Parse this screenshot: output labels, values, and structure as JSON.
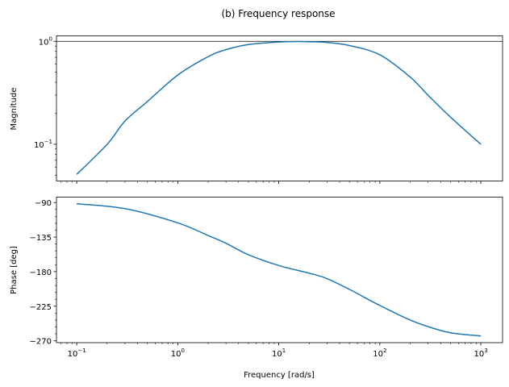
{
  "chart_data": [
    {
      "type": "line",
      "title": "(b) Frequency response",
      "xlabel": "",
      "ylabel": "Magnitude",
      "xscale": "log",
      "yscale": "log",
      "xlim": [
        0.063,
        1640
      ],
      "ylim": [
        0.044,
        1.13
      ],
      "grid": false,
      "reference_line_y": 1,
      "color": "#1f77b4",
      "yticks": [
        {
          "v": 1,
          "label": "10",
          "exp": "0"
        },
        {
          "v": 0.1,
          "label": "10",
          "exp": "−1"
        }
      ],
      "x": [
        0.1,
        0.2,
        0.3,
        0.5,
        1,
        2,
        3,
        5,
        10,
        15,
        20,
        30,
        50,
        100,
        200,
        300,
        500,
        1000
      ],
      "y": [
        0.051,
        0.1,
        0.168,
        0.26,
        0.47,
        0.71,
        0.83,
        0.93,
        0.985,
        0.995,
        0.99,
        0.976,
        0.91,
        0.74,
        0.45,
        0.3,
        0.184,
        0.1
      ]
    },
    {
      "type": "line",
      "xlabel": "Frequency [rad/s]",
      "ylabel": "Phase [deg]",
      "xscale": "log",
      "yscale": "linear",
      "xlim": [
        0.063,
        1640
      ],
      "ylim": [
        -272.4,
        -83
      ],
      "grid": false,
      "color": "#1f77b4",
      "yticks": [
        {
          "v": -90,
          "label": "−90"
        },
        {
          "v": -135,
          "label": "−135"
        },
        {
          "v": -180,
          "label": "−180"
        },
        {
          "v": -225,
          "label": "−225"
        },
        {
          "v": -270,
          "label": "−270"
        }
      ],
      "xticks": [
        {
          "v": 0.1,
          "label": "10",
          "exp": "−1"
        },
        {
          "v": 1,
          "label": "10",
          "exp": "0"
        },
        {
          "v": 10,
          "label": "10",
          "exp": "1"
        },
        {
          "v": 100,
          "label": "10",
          "exp": "2"
        },
        {
          "v": 1000,
          "label": "10",
          "exp": "3"
        }
      ],
      "x": [
        0.1,
        0.3,
        1,
        2,
        3,
        5,
        10,
        20,
        30,
        50,
        100,
        200,
        300,
        500,
        1000
      ],
      "y": [
        -91.7,
        -98,
        -116.5,
        -133,
        -143,
        -158,
        -172,
        -182,
        -189,
        -203,
        -224,
        -243,
        -251.5,
        -259.5,
        -263.7
      ]
    }
  ]
}
